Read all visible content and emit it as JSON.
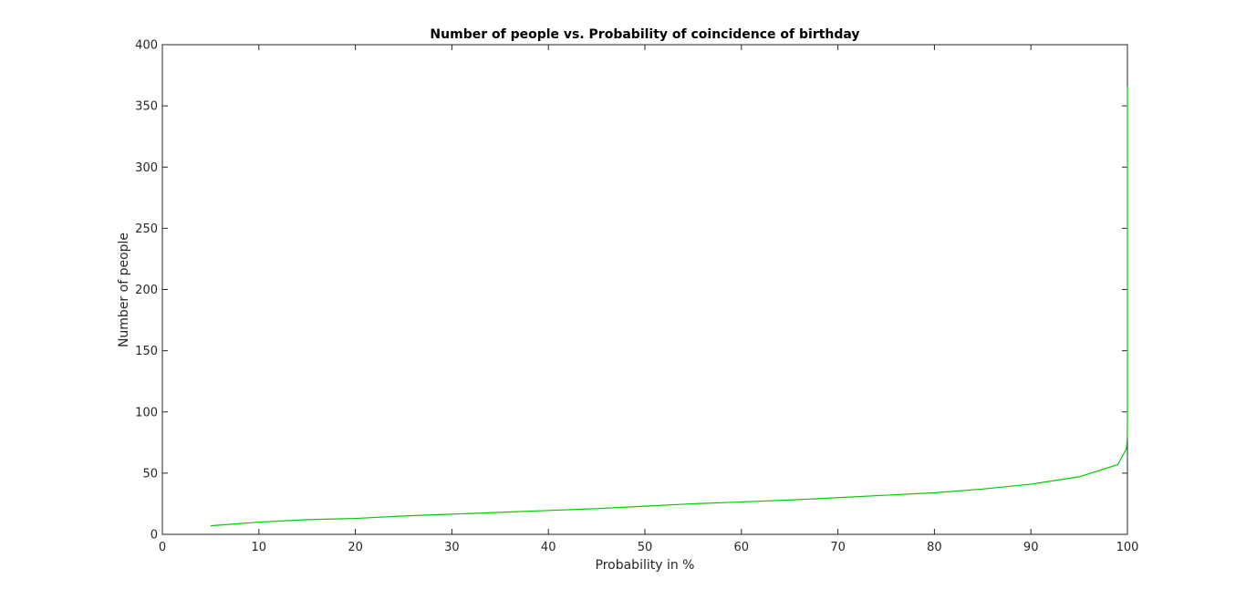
{
  "chart_data": {
    "type": "line",
    "title": "Number of people vs. Probability of coincidence of birthday",
    "xlabel": "Probability in %",
    "ylabel": "Number of people",
    "xlim": [
      0,
      100
    ],
    "ylim": [
      0,
      400
    ],
    "xticks": [
      0,
      10,
      20,
      30,
      40,
      50,
      60,
      70,
      80,
      90,
      100
    ],
    "yticks": [
      0,
      50,
      100,
      150,
      200,
      250,
      300,
      350,
      400
    ],
    "grid": false,
    "legend": "none",
    "series": [
      {
        "color": "#00cc00",
        "x": [
          5,
          10,
          15,
          20,
          25,
          30,
          35,
          40,
          45,
          50,
          55,
          60,
          65,
          70,
          75,
          80,
          85,
          90,
          95,
          99,
          99.9,
          99.99,
          99.999,
          100,
          100
        ],
        "y": [
          7,
          10,
          12,
          13,
          15,
          16.5,
          18,
          19.5,
          21,
          23,
          25,
          26.5,
          28,
          30,
          32,
          34,
          37,
          41,
          47,
          57,
          70,
          80,
          100,
          230,
          366
        ]
      }
    ]
  }
}
